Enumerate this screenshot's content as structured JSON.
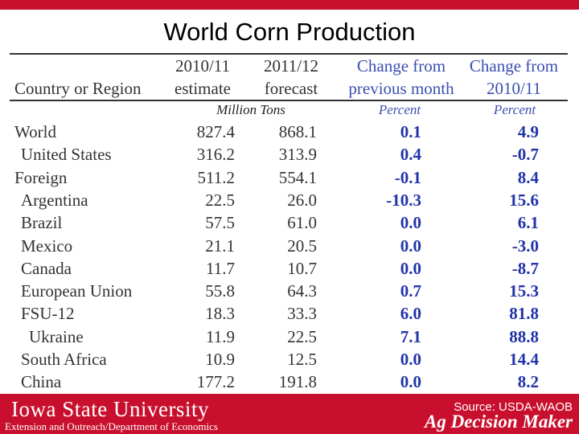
{
  "title": "World Corn Production",
  "table": {
    "header": {
      "country": "Country or Region",
      "col1_line1": "2010/11",
      "col1_line2": "estimate",
      "col2_line1": "2011/12",
      "col2_line2": "forecast",
      "col3_line1": "Change from",
      "col3_line2": "previous month",
      "col4_line1": "Change from",
      "col4_line2": "2010/11"
    },
    "units": {
      "tons": "Million Tons",
      "percent1": "Percent",
      "percent2": "Percent"
    },
    "rows": [
      {
        "name": "World",
        "indent": 0,
        "v2010": "827.4",
        "v2011": "868.1",
        "chg_month": "0.1",
        "chg_year": "4.9"
      },
      {
        "name": "United States",
        "indent": 1,
        "v2010": "316.2",
        "v2011": "313.9",
        "chg_month": "0.4",
        "chg_year": "-0.7"
      },
      {
        "name": "Foreign",
        "indent": 0,
        "v2010": "511.2",
        "v2011": "554.1",
        "chg_month": "-0.1",
        "chg_year": "8.4"
      },
      {
        "name": "Argentina",
        "indent": 1,
        "v2010": "22.5",
        "v2011": "26.0",
        "chg_month": "-10.3",
        "chg_year": "15.6"
      },
      {
        "name": "Brazil",
        "indent": 1,
        "v2010": "57.5",
        "v2011": "61.0",
        "chg_month": "0.0",
        "chg_year": "6.1"
      },
      {
        "name": "Mexico",
        "indent": 1,
        "v2010": "21.1",
        "v2011": "20.5",
        "chg_month": "0.0",
        "chg_year": "-3.0"
      },
      {
        "name": "Canada",
        "indent": 1,
        "v2010": "11.7",
        "v2011": "10.7",
        "chg_month": "0.0",
        "chg_year": "-8.7"
      },
      {
        "name": "European Union",
        "indent": 1,
        "v2010": "55.8",
        "v2011": "64.3",
        "chg_month": "0.7",
        "chg_year": "15.3"
      },
      {
        "name": "FSU-12",
        "indent": 1,
        "v2010": "18.3",
        "v2011": "33.3",
        "chg_month": "6.0",
        "chg_year": "81.8"
      },
      {
        "name": "Ukraine",
        "indent": 2,
        "v2010": "11.9",
        "v2011": "22.5",
        "chg_month": "7.1",
        "chg_year": "88.8"
      },
      {
        "name": "South Africa",
        "indent": 1,
        "v2010": "10.9",
        "v2011": "12.5",
        "chg_month": "0.0",
        "chg_year": "14.4"
      },
      {
        "name": "China",
        "indent": 1,
        "v2010": "177.2",
        "v2011": "191.8",
        "chg_month": "0.0",
        "chg_year": "8.2"
      }
    ]
  },
  "footer": {
    "university": "Iowa State University",
    "department": "Extension and Outreach/Department of Economics",
    "source": "Source: USDA-WAOB",
    "brand": "Ag Decision Maker"
  },
  "colors": {
    "brand_red": "#c8102e",
    "percent_blue": "#2233aa"
  }
}
